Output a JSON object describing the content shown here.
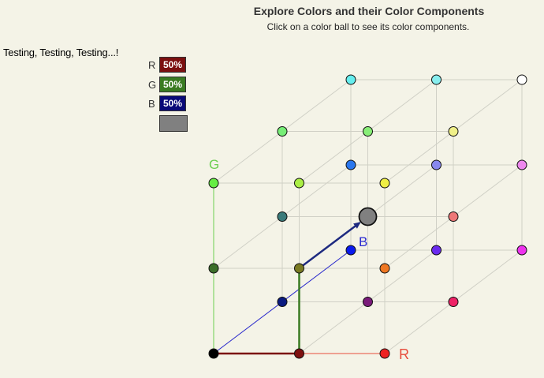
{
  "header": {
    "title": "Explore Colors and their Color Components",
    "subtitle": "Click on a color ball to see its color components."
  },
  "message": "Testing, Testing, Testing...!",
  "components": [
    {
      "key": "r",
      "label": "R",
      "value": "50%",
      "color": "#7b1010"
    },
    {
      "key": "g",
      "label": "G",
      "value": "50%",
      "color": "#3a7b22"
    },
    {
      "key": "b",
      "label": "B",
      "value": "50%",
      "color": "#0a0a78"
    }
  ],
  "selected_color": "#808080",
  "axes": {
    "r_label": "R",
    "g_label": "G",
    "b_label": "B",
    "r_color": "#e74c3c",
    "g_color": "#6ccf50",
    "b_color": "#2a2ad0"
  },
  "component_line_colors": {
    "r": "#7b1010",
    "g": "#3a7b22",
    "b": "#1e2a80"
  },
  "balls": [
    {
      "name": "ball-black",
      "ijk": [
        0,
        0,
        0
      ],
      "color": "#000000"
    },
    {
      "name": "ball-dark-red",
      "ijk": [
        1,
        0,
        0
      ],
      "color": "#7f1010"
    },
    {
      "name": "ball-red",
      "ijk": [
        2,
        0,
        0
      ],
      "color": "#ee2222"
    },
    {
      "name": "ball-dark-green",
      "ijk": [
        0,
        1,
        0
      ],
      "color": "#3b6e2a"
    },
    {
      "name": "ball-olive",
      "ijk": [
        1,
        1,
        0
      ],
      "color": "#7a7a22"
    },
    {
      "name": "ball-orange",
      "ijk": [
        2,
        1,
        0
      ],
      "color": "#ee7722"
    },
    {
      "name": "ball-green",
      "ijk": [
        0,
        2,
        0
      ],
      "color": "#66ee44"
    },
    {
      "name": "ball-lime",
      "ijk": [
        1,
        2,
        0
      ],
      "color": "#aaee44"
    },
    {
      "name": "ball-yellow",
      "ijk": [
        2,
        2,
        0
      ],
      "color": "#eeee44"
    },
    {
      "name": "ball-navy",
      "ijk": [
        0,
        0,
        1
      ],
      "color": "#0a1a80"
    },
    {
      "name": "ball-purple",
      "ijk": [
        1,
        0,
        1
      ],
      "color": "#7a1a7a"
    },
    {
      "name": "ball-crimson",
      "ijk": [
        2,
        0,
        1
      ],
      "color": "#ee2266"
    },
    {
      "name": "ball-teal",
      "ijk": [
        0,
        1,
        1
      ],
      "color": "#3a7a7a"
    },
    {
      "name": "ball-gray-center",
      "ijk": [
        1,
        1,
        1
      ],
      "color": "#808080",
      "selected": true
    },
    {
      "name": "ball-salmon",
      "ijk": [
        2,
        1,
        1
      ],
      "color": "#ee7777"
    },
    {
      "name": "ball-light-green",
      "ijk": [
        0,
        2,
        1
      ],
      "color": "#77ee77"
    },
    {
      "name": "ball-pale-green",
      "ijk": [
        1,
        2,
        1
      ],
      "color": "#88ee77"
    },
    {
      "name": "ball-pale-yellow",
      "ijk": [
        2,
        2,
        1
      ],
      "color": "#f0f088"
    },
    {
      "name": "ball-blue",
      "ijk": [
        0,
        0,
        2
      ],
      "color": "#0a1aee"
    },
    {
      "name": "ball-violet",
      "ijk": [
        1,
        0,
        2
      ],
      "color": "#6a2aee"
    },
    {
      "name": "ball-magenta",
      "ijk": [
        2,
        0,
        2
      ],
      "color": "#ee33ee"
    },
    {
      "name": "ball-steel-blue",
      "ijk": [
        0,
        1,
        2
      ],
      "color": "#2a77ee"
    },
    {
      "name": "ball-periwinkle",
      "ijk": [
        1,
        1,
        2
      ],
      "color": "#8888ee"
    },
    {
      "name": "ball-orchid",
      "ijk": [
        2,
        1,
        2
      ],
      "color": "#ee88ee"
    },
    {
      "name": "ball-cyan",
      "ijk": [
        0,
        2,
        2
      ],
      "color": "#66eeee"
    },
    {
      "name": "ball-light-cyan",
      "ijk": [
        1,
        2,
        2
      ],
      "color": "#88eeee"
    },
    {
      "name": "ball-white",
      "ijk": [
        2,
        2,
        2
      ],
      "color": "#ffffff"
    }
  ]
}
